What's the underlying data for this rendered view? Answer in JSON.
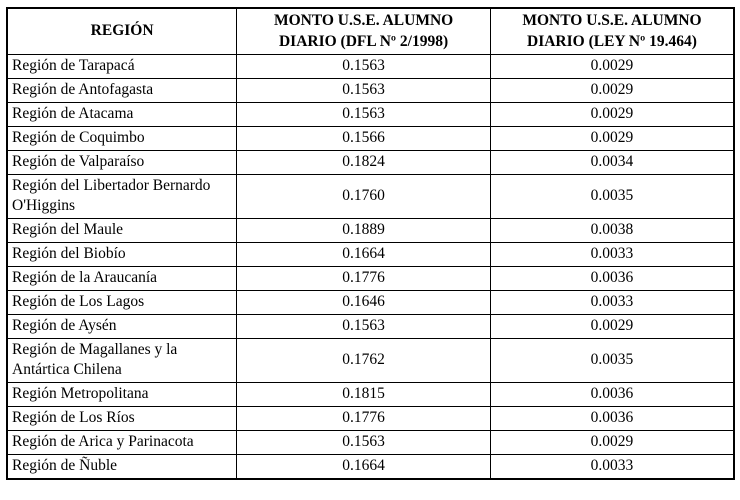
{
  "table": {
    "headers": [
      "REGIÓN",
      "MONTO U.S.E. ALUMNO DIARIO (DFL Nº 2/1998)",
      "MONTO U.S.E. ALUMNO DIARIO (LEY Nº 19.464)"
    ],
    "rows": [
      {
        "region": "Región de Tarapacá",
        "dfl": "0.1563",
        "ley": "0.0029"
      },
      {
        "region": "Región de Antofagasta",
        "dfl": "0.1563",
        "ley": "0.0029"
      },
      {
        "region": "Región de Atacama",
        "dfl": "0.1563",
        "ley": "0.0029"
      },
      {
        "region": "Región de Coquimbo",
        "dfl": "0.1566",
        "ley": "0.0029"
      },
      {
        "region": "Región de Valparaíso",
        "dfl": "0.1824",
        "ley": "0.0034"
      },
      {
        "region": "Región del Libertador Bernardo O'Higgins",
        "dfl": "0.1760",
        "ley": "0.0035"
      },
      {
        "region": "Región del Maule",
        "dfl": "0.1889",
        "ley": "0.0038"
      },
      {
        "region": "Región del Biobío",
        "dfl": "0.1664",
        "ley": "0.0033"
      },
      {
        "region": "Región de la Araucanía",
        "dfl": "0.1776",
        "ley": "0.0036"
      },
      {
        "region": "Región de Los Lagos",
        "dfl": "0.1646",
        "ley": "0.0033"
      },
      {
        "region": "Región de Aysén",
        "dfl": "0.1563",
        "ley": "0.0029"
      },
      {
        "region": "Región de Magallanes y la Antártica Chilena",
        "dfl": "0.1762",
        "ley": "0.0035"
      },
      {
        "region": "Región Metropolitana",
        "dfl": "0.1815",
        "ley": "0.0036"
      },
      {
        "region": "Región de Los Ríos",
        "dfl": "0.1776",
        "ley": "0.0036"
      },
      {
        "region": "Región de Arica y Parinacota",
        "dfl": "0.1563",
        "ley": "0.0029"
      },
      {
        "region": "Región de Ñuble",
        "dfl": "0.1664",
        "ley": "0.0033"
      }
    ]
  }
}
